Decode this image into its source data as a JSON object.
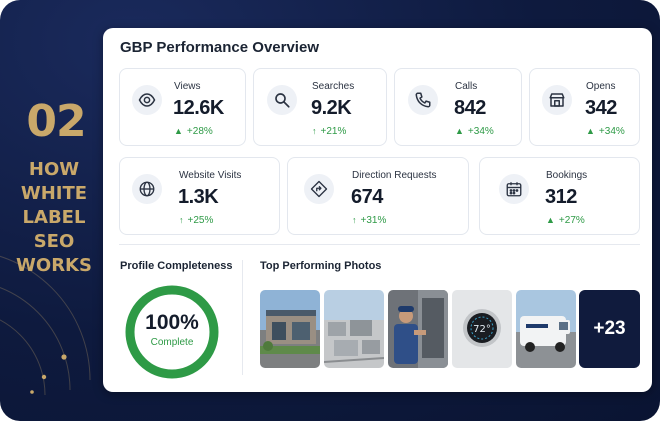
{
  "step": {
    "number": "02",
    "title_lines": [
      "HOW",
      "WHITE",
      "LABEL",
      "SEO",
      "WORKS"
    ]
  },
  "panel": {
    "title": "GBP Performance Overview"
  },
  "metrics": [
    {
      "label": "Views",
      "value": "12.6K",
      "change": "+28%",
      "icon": "eye-icon"
    },
    {
      "label": "Searches",
      "value": "9.2K",
      "change": "+21%",
      "icon": "search-icon"
    },
    {
      "label": "Calls",
      "value": "842",
      "change": "+34%",
      "icon": "phone-icon"
    },
    {
      "label": "Opens",
      "value": "342",
      "change": "+34%",
      "icon": "storefront-icon"
    },
    {
      "label": "Website Visits",
      "value": "1.3K",
      "change": "+25%",
      "icon": "globe-icon"
    },
    {
      "label": "Direction Requests",
      "value": "674",
      "change": "+31%",
      "icon": "directions-icon"
    },
    {
      "label": "Bookings",
      "value": "312",
      "change": "+27%",
      "icon": "calendar-icon"
    }
  ],
  "profile": {
    "title": "Profile Completeness",
    "value": "100%",
    "status": "Complete",
    "fraction": 1.0
  },
  "photos": {
    "title": "Top Performing Photos",
    "items": [
      "storefront-photo",
      "rooftop-hvac-photo",
      "technician-photo",
      "thermostat-photo",
      "service-van-photo"
    ],
    "more": "+23"
  },
  "colors": {
    "accent_gold": "#c9a86a",
    "navy": "#0e1a3e",
    "positive_green": "#2e9a46"
  }
}
